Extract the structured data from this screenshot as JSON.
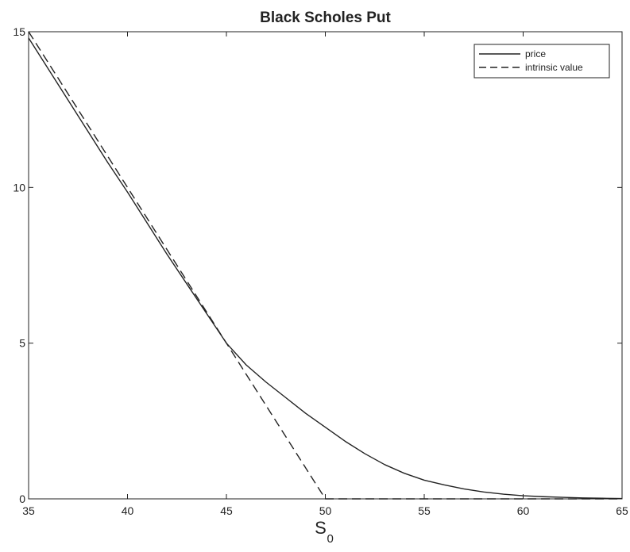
{
  "chart_data": {
    "type": "line",
    "title": "Black Scholes Put",
    "xlabel": "S",
    "xlabel_subscript": "0",
    "ylabel": "",
    "xlim": [
      35,
      65
    ],
    "ylim": [
      0,
      15
    ],
    "xticks": [
      35,
      40,
      45,
      50,
      55,
      60,
      65
    ],
    "yticks": [
      0,
      5,
      10,
      15
    ],
    "grid": false,
    "legend_position": "top-right",
    "series": [
      {
        "name": "price",
        "style": "solid",
        "color": "#222222",
        "x": [
          35,
          36,
          37,
          38,
          39,
          40,
          41,
          42,
          43,
          44,
          45,
          46,
          47,
          48,
          49,
          50,
          51,
          52,
          53,
          54,
          55,
          56,
          57,
          58,
          59,
          60,
          61,
          62,
          63,
          64,
          65
        ],
        "y": [
          14.8,
          13.8,
          12.8,
          11.8,
          10.8,
          9.85,
          8.85,
          7.85,
          6.9,
          5.95,
          5.0,
          4.3,
          3.75,
          3.25,
          2.75,
          2.3,
          1.85,
          1.45,
          1.1,
          0.82,
          0.6,
          0.45,
          0.32,
          0.22,
          0.15,
          0.1,
          0.07,
          0.05,
          0.03,
          0.02,
          0.01
        ]
      },
      {
        "name": "intrinsic value",
        "style": "dashed",
        "color": "#222222",
        "x": [
          35,
          50,
          65
        ],
        "y": [
          15,
          0,
          0
        ]
      }
    ]
  }
}
